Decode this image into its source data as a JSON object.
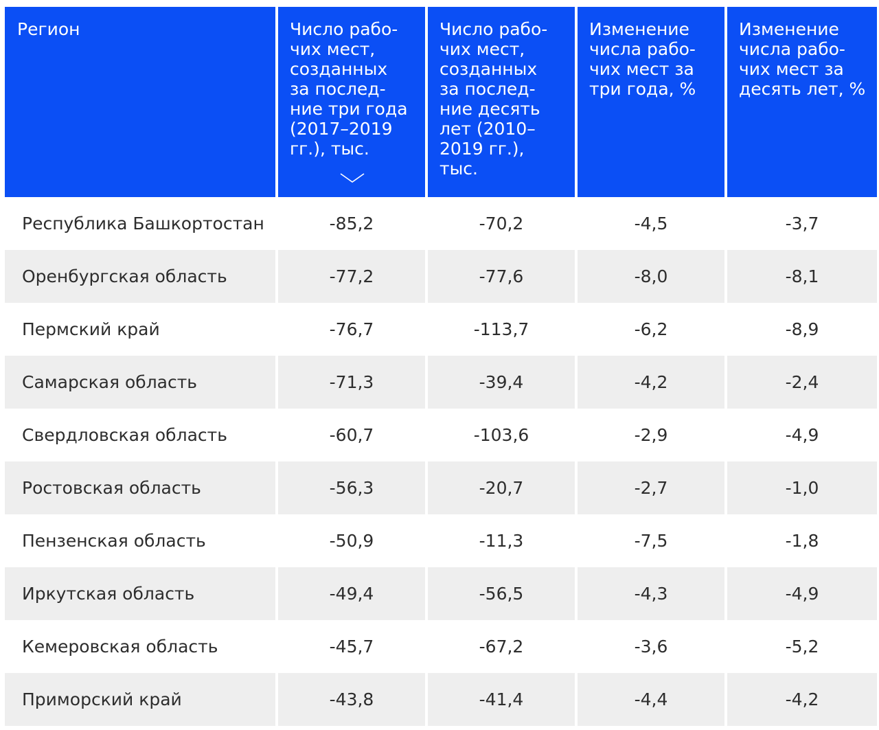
{
  "table": {
    "headers": [
      "Регион",
      "Число рабо-\nчих мест,\nсозданных\nза послед-\nние три года\n(2017–2019\nгг.), тыс.",
      "Число рабо-\nчих мест,\nсозданных\nза послед-\nние десять\nлет (2010–\n2019 гг.), тыс.",
      "Изменение\nчисла рабо-\nчих мест за\nтри года, %",
      "Изменение\nчисла рабо-\nчих мест за\nдесять лет, %"
    ],
    "sort_icon": "chevron-down-icon",
    "sorted_column": 1,
    "header_color": "#0b4ff5",
    "stripe_color": "#eeeeee",
    "rows": [
      [
        "Республика Башкортостан",
        "-85,2",
        "-70,2",
        "-4,5",
        "-3,7"
      ],
      [
        "Оренбургская область",
        "-77,2",
        "-77,6",
        "-8,0",
        "-8,1"
      ],
      [
        "Пермский край",
        "-76,7",
        "-113,7",
        "-6,2",
        "-8,9"
      ],
      [
        "Самарская область",
        "-71,3",
        "-39,4",
        "-4,2",
        "-2,4"
      ],
      [
        "Свердловская область",
        "-60,7",
        "-103,6",
        "-2,9",
        "-4,9"
      ],
      [
        "Ростовская область",
        "-56,3",
        "-20,7",
        "-2,7",
        "-1,0"
      ],
      [
        "Пензенская область",
        "-50,9",
        "-11,3",
        "-7,5",
        "-1,8"
      ],
      [
        "Иркутская область",
        "-49,4",
        "-56,5",
        "-4,3",
        "-4,9"
      ],
      [
        "Кемеровская область",
        "-45,7",
        "-67,2",
        "-3,6",
        "-5,2"
      ],
      [
        "Приморский край",
        "-43,8",
        "-41,4",
        "-4,4",
        "-4,2"
      ]
    ]
  }
}
